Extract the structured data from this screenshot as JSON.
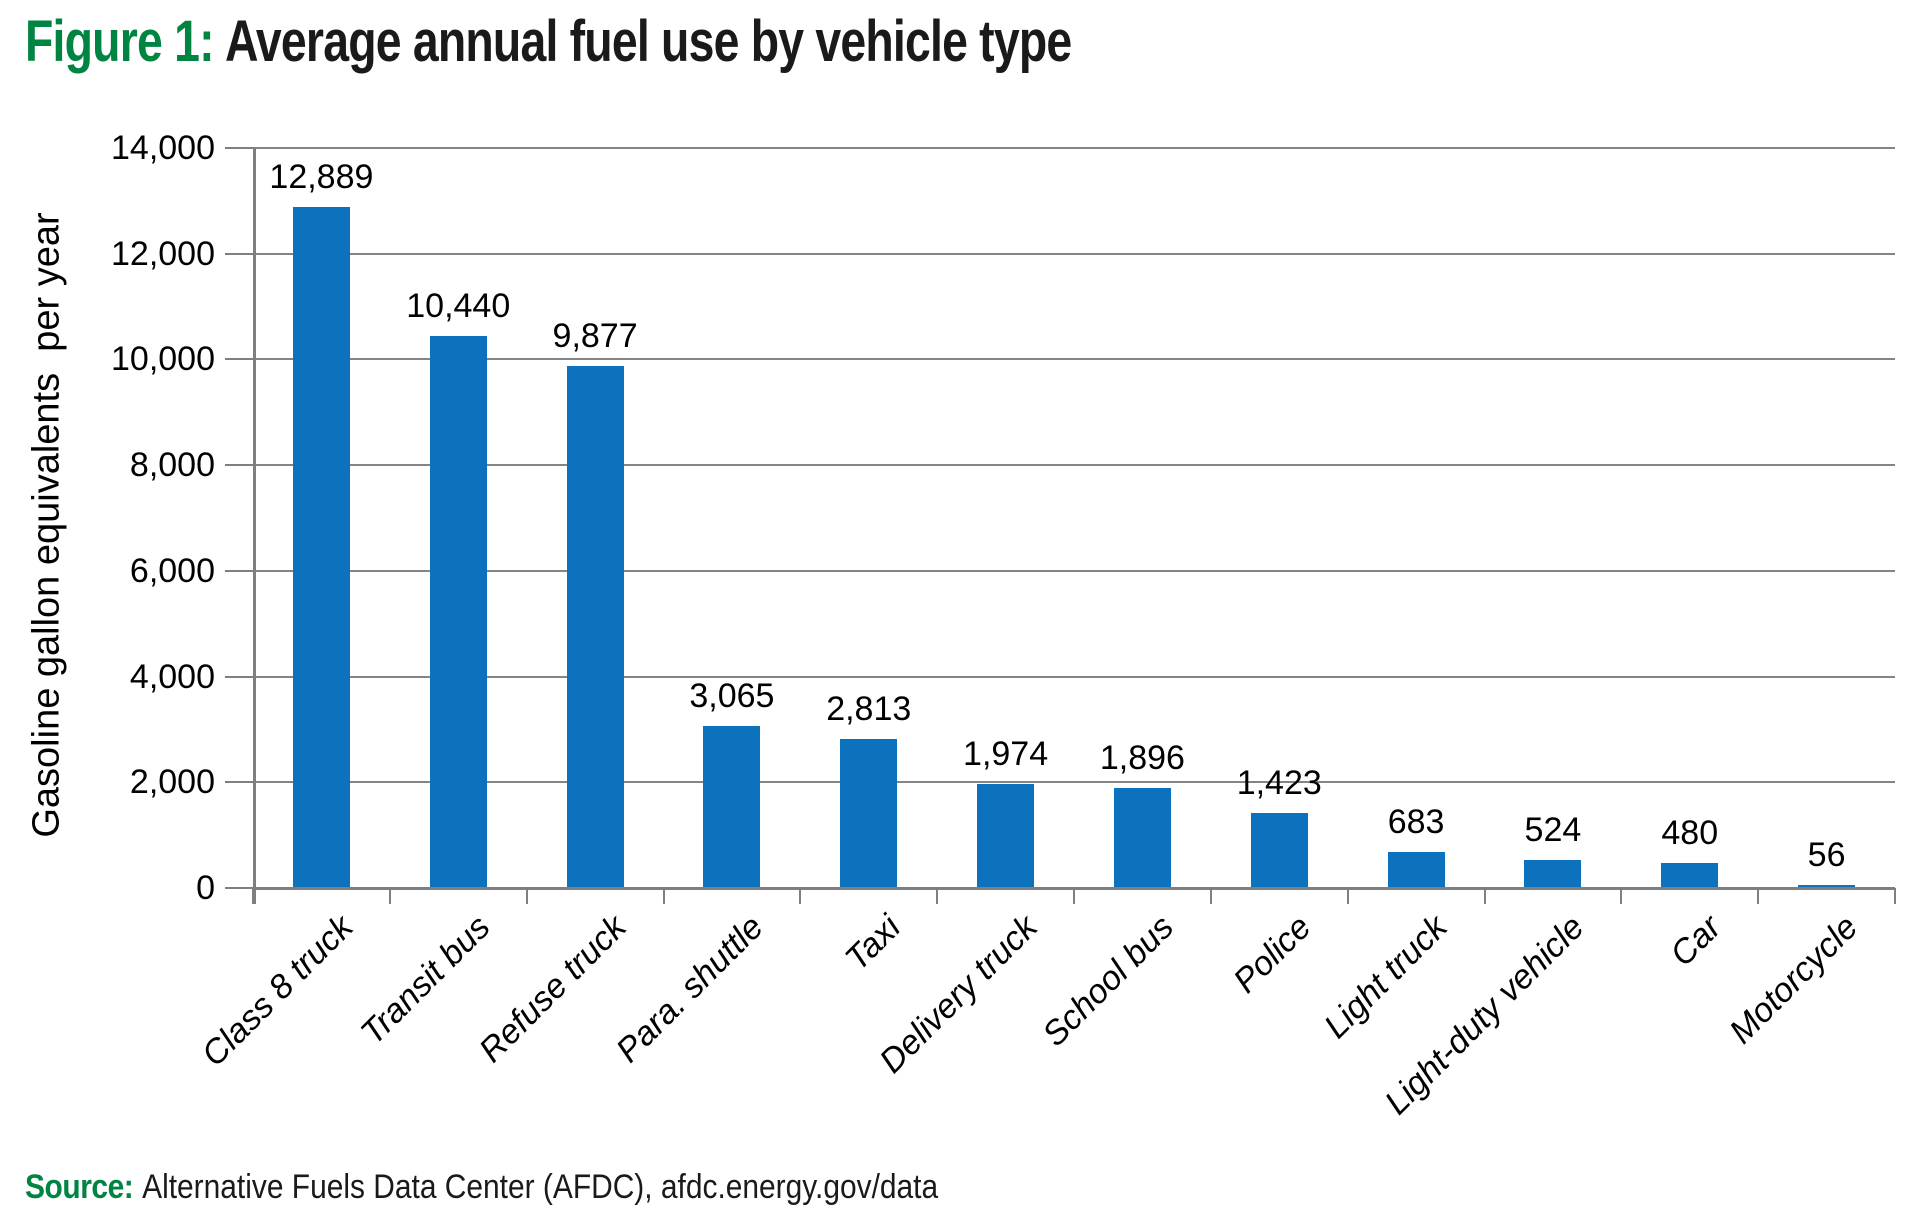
{
  "title": {
    "prefix": "Figure 1:",
    "text": "Average annual fuel use by vehicle type"
  },
  "source": {
    "prefix": "Source:",
    "text": "Alternative Fuels Data Center (AFDC), afdc.energy.gov/data"
  },
  "colors": {
    "accent_green": "#008442",
    "bar_blue": "#0d72bd",
    "grid_gray": "#848484",
    "axis_gray": "#7f7f7f",
    "text_black": "#1a1a1a"
  },
  "chart_data": {
    "type": "bar",
    "title": "Average annual fuel use by vehicle type",
    "xlabel": "",
    "ylabel": "Gasoline gallon equivalents  per year",
    "categories": [
      "Class 8 truck",
      "Transit bus",
      "Refuse truck",
      "Para. shuttle",
      "Taxi",
      "Delivery truck",
      "School bus",
      "Police",
      "Light truck",
      "Light-duty vehicle",
      "Car",
      "Motorcycle"
    ],
    "values": [
      12889,
      10440,
      9877,
      3065,
      2813,
      1974,
      1896,
      1423,
      683,
      524,
      480,
      56
    ],
    "value_labels": [
      "12,889",
      "10,440",
      "9,877",
      "3,065",
      "2,813",
      "1,974",
      "1,896",
      "1,423",
      "683",
      "524",
      "480",
      "56"
    ],
    "ylim": [
      0,
      14000
    ],
    "ytick_step": 2000,
    "ytick_labels": [
      "0",
      "2,000",
      "4,000",
      "6,000",
      "8,000",
      "10,000",
      "12,000",
      "14,000"
    ],
    "grid": true,
    "legend": false,
    "bar_color": "#0d72bd"
  }
}
